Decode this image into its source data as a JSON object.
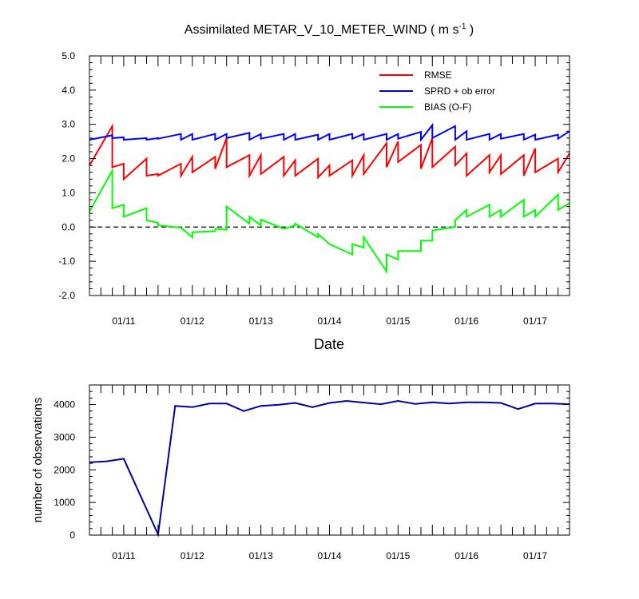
{
  "chart_data": [
    {
      "type": "line",
      "title": "Assimilated METAR_V_10_METER_WIND",
      "title_units": "( m s",
      "title_units_exp": "-1",
      "title_units_close": ")",
      "xlabel": "Date",
      "ylabel": "",
      "ylim": [
        -2.0,
        5.0
      ],
      "yticks": [
        "5.0",
        "4.0",
        "3.0",
        "2.0",
        "1.0",
        "0.0",
        "-1.0",
        "-2.0"
      ],
      "xlim": [
        0,
        42
      ],
      "xtick_labels": [
        "01/11",
        "01/12",
        "01/13",
        "01/14",
        "01/15",
        "01/16",
        "01/17"
      ],
      "xtick_positions": [
        3,
        9,
        15,
        21,
        27,
        33,
        39
      ],
      "zero_line": true,
      "legend_position": "top-right",
      "series": [
        {
          "name": "RMSE",
          "color": "#ff0000",
          "x": [
            0,
            2,
            2,
            3,
            3,
            5,
            5,
            6,
            6,
            8,
            8,
            9,
            9,
            11,
            11,
            12,
            12,
            14,
            14,
            15,
            15,
            17,
            17,
            18,
            18,
            20,
            20,
            21,
            21,
            23,
            23,
            24,
            24,
            26,
            26,
            27,
            27,
            29,
            29,
            30,
            30,
            32,
            32,
            33,
            33,
            35,
            35,
            36,
            36,
            38,
            38,
            39,
            39,
            41,
            41,
            42
          ],
          "y": [
            1.8,
            2.95,
            1.75,
            1.85,
            1.4,
            2.0,
            1.5,
            1.55,
            1.5,
            1.85,
            1.5,
            2.05,
            1.6,
            2.05,
            1.7,
            2.6,
            1.75,
            2.1,
            1.5,
            2.1,
            1.55,
            2.05,
            1.5,
            1.95,
            1.5,
            2.0,
            1.45,
            1.8,
            1.5,
            1.95,
            1.5,
            2.1,
            1.55,
            2.45,
            1.75,
            2.5,
            1.9,
            2.4,
            1.7,
            2.6,
            1.75,
            2.35,
            1.8,
            2.15,
            1.5,
            2.1,
            1.6,
            2.1,
            1.55,
            2.1,
            1.5,
            2.3,
            1.6,
            2.0,
            1.6,
            2.15
          ]
        },
        {
          "name": "SPRD + ob error",
          "color": "#0000ff",
          "x": [
            0,
            2,
            2,
            3,
            3,
            5,
            5,
            6,
            6,
            8,
            8,
            9,
            9,
            11,
            11,
            12,
            12,
            14,
            14,
            15,
            15,
            17,
            17,
            18,
            18,
            20,
            20,
            21,
            21,
            23,
            23,
            24,
            24,
            26,
            26,
            27,
            27,
            29,
            29,
            30,
            30,
            32,
            32,
            33,
            33,
            35,
            35,
            36,
            36,
            38,
            38,
            39,
            39,
            41,
            41,
            42
          ],
          "y": [
            2.55,
            2.68,
            2.6,
            2.62,
            2.55,
            2.6,
            2.55,
            2.6,
            2.58,
            2.72,
            2.55,
            2.72,
            2.55,
            2.72,
            2.55,
            2.72,
            2.6,
            2.75,
            2.55,
            2.72,
            2.58,
            2.72,
            2.55,
            2.72,
            2.55,
            2.7,
            2.55,
            2.72,
            2.55,
            2.72,
            2.58,
            2.72,
            2.55,
            2.72,
            2.55,
            2.72,
            2.58,
            2.78,
            2.55,
            2.98,
            2.6,
            2.95,
            2.55,
            2.8,
            2.55,
            2.72,
            2.55,
            2.72,
            2.58,
            2.72,
            2.55,
            2.7,
            2.55,
            2.7,
            2.58,
            2.8
          ]
        },
        {
          "name": "BIAS (O-F)",
          "color": "#00ff00",
          "x": [
            0,
            2,
            2,
            3,
            3,
            5,
            5,
            6,
            6,
            8,
            9,
            9,
            11,
            11,
            12,
            12,
            14,
            14,
            15,
            15,
            17,
            18,
            18,
            20,
            20,
            21,
            21,
            23,
            23,
            24,
            24,
            26,
            26,
            27,
            27,
            29,
            29,
            30,
            30,
            32,
            32,
            33,
            33,
            35,
            35,
            36,
            36,
            38,
            38,
            39,
            39,
            41,
            41,
            42
          ],
          "y": [
            0.45,
            1.65,
            0.55,
            0.65,
            0.3,
            0.55,
            0.2,
            0.12,
            0.05,
            -0.02,
            -0.3,
            -0.15,
            -0.12,
            -0.05,
            -0.08,
            0.6,
            0.1,
            0.3,
            0.05,
            0.22,
            -0.05,
            0.05,
            0.1,
            -0.3,
            -0.2,
            -0.5,
            -0.5,
            -0.8,
            -0.5,
            -0.6,
            -0.3,
            -1.3,
            -0.8,
            -0.95,
            -0.7,
            -0.7,
            -0.4,
            -0.4,
            -0.1,
            0.0,
            0.2,
            0.5,
            0.3,
            0.65,
            0.3,
            0.5,
            0.3,
            0.8,
            0.3,
            0.5,
            0.3,
            0.95,
            0.5,
            0.7
          ]
        }
      ]
    },
    {
      "type": "line",
      "title": "",
      "xlabel": "",
      "ylabel": "number of observations",
      "ylim": [
        0,
        4600
      ],
      "yticks": [
        "4000",
        "3000",
        "2000",
        "1000",
        "0"
      ],
      "ytick_values": [
        4000,
        3000,
        2000,
        1000,
        0
      ],
      "xlim": [
        0,
        42
      ],
      "xtick_labels": [
        "01/11",
        "01/12",
        "01/13",
        "01/14",
        "01/15",
        "01/16",
        "01/17"
      ],
      "xtick_positions": [
        3,
        9,
        15,
        21,
        27,
        33,
        39
      ],
      "series": [
        {
          "name": "number of observations",
          "color": "#000080",
          "x": [
            0,
            1.5,
            3,
            6,
            7.5,
            9,
            10.5,
            12,
            13.5,
            15,
            16.5,
            18,
            19.5,
            21,
            22.5,
            24,
            25.5,
            27,
            28.5,
            30,
            31.5,
            33,
            34.5,
            36,
            37.5,
            39,
            40.5,
            42
          ],
          "y": [
            2230,
            2260,
            2340,
            20,
            3960,
            3920,
            4030,
            4030,
            3800,
            3960,
            3990,
            4050,
            3920,
            4050,
            4110,
            4060,
            4010,
            4110,
            4020,
            4070,
            4030,
            4070,
            4070,
            4050,
            3860,
            4030,
            4030,
            4010
          ]
        }
      ]
    }
  ]
}
